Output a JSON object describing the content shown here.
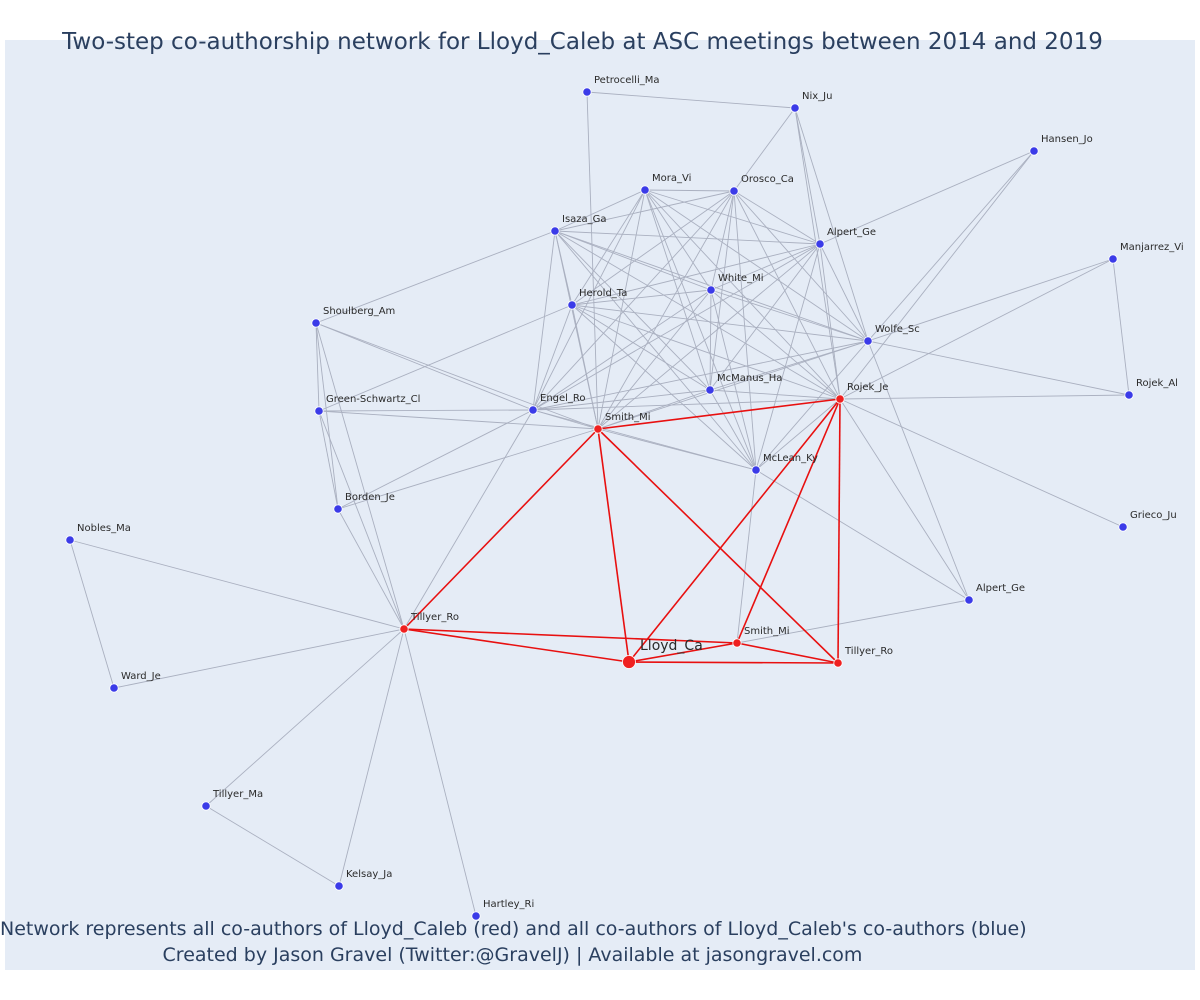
{
  "title": "Two-step co-authorship network for Lloyd_Caleb at ASC meetings between 2014 and 2019",
  "caption": {
    "line1": "Network represents all co-authors of Lloyd_Caleb (red) and all co-authors of Lloyd_Caleb's co-authors (blue)",
    "line2": "Created by Jason Gravel (Twitter:@GravelJ) | Available at jasongravel.com"
  },
  "colors": {
    "background": "#e5ecf6",
    "first_step_node": "#ef2020",
    "second_step_node": "#3b3be8",
    "first_step_edge": "#e81010",
    "second_step_edge": "#aab0c0",
    "text": "#2a3f5f"
  },
  "network": {
    "ego": "Lloyd_Ca",
    "nodes": [
      {
        "id": "lloyd",
        "label": "Lloyd_Ca",
        "group": "ego"
      },
      {
        "id": "smithA",
        "label": "Smith_Mi",
        "group": "first"
      },
      {
        "id": "rojekJe",
        "label": "Rojek_Je",
        "group": "first"
      },
      {
        "id": "tillyerA",
        "label": "Tillyer_Ro",
        "group": "first"
      },
      {
        "id": "smithB",
        "label": "Smith_Mi",
        "group": "first"
      },
      {
        "id": "tillyerB",
        "label": "Tillyer_Ro",
        "group": "first"
      },
      {
        "id": "petro",
        "label": "Petrocelli_Ma",
        "group": "second"
      },
      {
        "id": "nix",
        "label": "Nix_Ju",
        "group": "second"
      },
      {
        "id": "hansen",
        "label": "Hansen_Jo",
        "group": "second"
      },
      {
        "id": "mora",
        "label": "Mora_Vi",
        "group": "second"
      },
      {
        "id": "orosco",
        "label": "Orosco_Ca",
        "group": "second"
      },
      {
        "id": "isaza",
        "label": "Isaza_Ga",
        "group": "second"
      },
      {
        "id": "alpertA",
        "label": "Alpert_Ge",
        "group": "second"
      },
      {
        "id": "manjarrez",
        "label": "Manjarrez_Vi",
        "group": "second"
      },
      {
        "id": "white",
        "label": "White_Mi",
        "group": "second"
      },
      {
        "id": "herold",
        "label": "Herold_Ta",
        "group": "second"
      },
      {
        "id": "shoulberg",
        "label": "Shoulberg_Am",
        "group": "second"
      },
      {
        "id": "wolfe",
        "label": "Wolfe_Sc",
        "group": "second"
      },
      {
        "id": "mcmanus",
        "label": "McManus_Ha",
        "group": "second"
      },
      {
        "id": "greenschwartz",
        "label": "Green-Schwartz_Cl",
        "group": "second"
      },
      {
        "id": "engel",
        "label": "Engel_Ro",
        "group": "second"
      },
      {
        "id": "rojekAl",
        "label": "Rojek_Al",
        "group": "second"
      },
      {
        "id": "mclean",
        "label": "McLean_Ky",
        "group": "second"
      },
      {
        "id": "borden",
        "label": "Borden_Je",
        "group": "second"
      },
      {
        "id": "grieco",
        "label": "Grieco_Ju",
        "group": "second"
      },
      {
        "id": "nobles",
        "label": "Nobles_Ma",
        "group": "second"
      },
      {
        "id": "alpertB",
        "label": "Alpert_Ge",
        "group": "second"
      },
      {
        "id": "ward",
        "label": "Ward_Je",
        "group": "second"
      },
      {
        "id": "tillyerMa",
        "label": "Tillyer_Ma",
        "group": "second"
      },
      {
        "id": "kelsay",
        "label": "Kelsay_Ja",
        "group": "second"
      },
      {
        "id": "hartley",
        "label": "Hartley_Ri",
        "group": "second"
      }
    ],
    "edges": [
      [
        "lloyd",
        "smithA"
      ],
      [
        "lloyd",
        "rojekJe"
      ],
      [
        "lloyd",
        "tillyerA"
      ],
      [
        "lloyd",
        "smithB"
      ],
      [
        "lloyd",
        "tillyerB"
      ],
      [
        "smithA",
        "rojekJe"
      ],
      [
        "smithA",
        "tillyerA"
      ],
      [
        "smithA",
        "tillyerB"
      ],
      [
        "rojekJe",
        "smithB"
      ],
      [
        "rojekJe",
        "tillyerB"
      ],
      [
        "tillyerA",
        "smithB"
      ],
      [
        "smithB",
        "tillyerB"
      ],
      [
        "petro",
        "nix"
      ],
      [
        "petro",
        "smithA"
      ],
      [
        "nix",
        "alpertA"
      ],
      [
        "nix",
        "wolfe"
      ],
      [
        "nix",
        "orosco"
      ],
      [
        "nix",
        "rojekJe"
      ],
      [
        "hansen",
        "wolfe"
      ],
      [
        "hansen",
        "rojekJe"
      ],
      [
        "hansen",
        "alpertA"
      ],
      [
        "manjarrez",
        "wolfe"
      ],
      [
        "manjarrez",
        "rojekAl"
      ],
      [
        "manjarrez",
        "rojekJe"
      ],
      [
        "wolfe",
        "rojekAl"
      ],
      [
        "rojekJe",
        "rojekAl"
      ],
      [
        "rojekJe",
        "grieco"
      ],
      [
        "wolfe",
        "alpertB"
      ],
      [
        "rojekJe",
        "alpertB"
      ],
      [
        "smithB",
        "alpertB"
      ],
      [
        "mora",
        "orosco"
      ],
      [
        "mora",
        "isaza"
      ],
      [
        "mora",
        "alpertA"
      ],
      [
        "mora",
        "white"
      ],
      [
        "mora",
        "herold"
      ],
      [
        "mora",
        "engel"
      ],
      [
        "mora",
        "smithA"
      ],
      [
        "mora",
        "mcmanus"
      ],
      [
        "mora",
        "wolfe"
      ],
      [
        "mora",
        "rojekJe"
      ],
      [
        "mora",
        "mclean"
      ],
      [
        "orosco",
        "isaza"
      ],
      [
        "orosco",
        "alpertA"
      ],
      [
        "orosco",
        "white"
      ],
      [
        "orosco",
        "herold"
      ],
      [
        "orosco",
        "engel"
      ],
      [
        "orosco",
        "smithA"
      ],
      [
        "orosco",
        "mcmanus"
      ],
      [
        "orosco",
        "wolfe"
      ],
      [
        "orosco",
        "rojekJe"
      ],
      [
        "orosco",
        "mclean"
      ],
      [
        "isaza",
        "alpertA"
      ],
      [
        "isaza",
        "white"
      ],
      [
        "isaza",
        "herold"
      ],
      [
        "isaza",
        "engel"
      ],
      [
        "isaza",
        "smithA"
      ],
      [
        "isaza",
        "mcmanus"
      ],
      [
        "isaza",
        "wolfe"
      ],
      [
        "isaza",
        "rojekJe"
      ],
      [
        "isaza",
        "mclean"
      ],
      [
        "isaza",
        "shoulberg"
      ],
      [
        "alpertA",
        "white"
      ],
      [
        "alpertA",
        "herold"
      ],
      [
        "alpertA",
        "engel"
      ],
      [
        "alpertA",
        "smithA"
      ],
      [
        "alpertA",
        "mcmanus"
      ],
      [
        "alpertA",
        "wolfe"
      ],
      [
        "alpertA",
        "rojekJe"
      ],
      [
        "alpertA",
        "mclean"
      ],
      [
        "white",
        "herold"
      ],
      [
        "white",
        "engel"
      ],
      [
        "white",
        "smithA"
      ],
      [
        "white",
        "mcmanus"
      ],
      [
        "white",
        "wolfe"
      ],
      [
        "white",
        "rojekJe"
      ],
      [
        "white",
        "mclean"
      ],
      [
        "herold",
        "engel"
      ],
      [
        "herold",
        "smithA"
      ],
      [
        "herold",
        "mcmanus"
      ],
      [
        "herold",
        "wolfe"
      ],
      [
        "herold",
        "rojekJe"
      ],
      [
        "herold",
        "mclean"
      ],
      [
        "herold",
        "greenschwartz"
      ],
      [
        "mcmanus",
        "engel"
      ],
      [
        "mcmanus",
        "smithA"
      ],
      [
        "mcmanus",
        "wolfe"
      ],
      [
        "mcmanus",
        "rojekJe"
      ],
      [
        "mcmanus",
        "mclean"
      ],
      [
        "engel",
        "smithA"
      ],
      [
        "engel",
        "wolfe"
      ],
      [
        "engel",
        "rojekJe"
      ],
      [
        "engel",
        "mclean"
      ],
      [
        "engel",
        "borden"
      ],
      [
        "engel",
        "tillyerA"
      ],
      [
        "engel",
        "greenschwartz"
      ],
      [
        "smithA",
        "wolfe"
      ],
      [
        "smithA",
        "mclean"
      ],
      [
        "wolfe",
        "mclean"
      ],
      [
        "rojekJe",
        "mclean"
      ],
      [
        "mclean",
        "smithB"
      ],
      [
        "mclean",
        "alpertB"
      ],
      [
        "shoulberg",
        "greenschwartz"
      ],
      [
        "shoulberg",
        "borden"
      ],
      [
        "shoulberg",
        "tillyerA"
      ],
      [
        "shoulberg",
        "smithA"
      ],
      [
        "shoulberg",
        "engel"
      ],
      [
        "greenschwartz",
        "borden"
      ],
      [
        "greenschwartz",
        "tillyerA"
      ],
      [
        "greenschwartz",
        "smithA"
      ],
      [
        "borden",
        "tillyerA"
      ],
      [
        "borden",
        "smithA"
      ],
      [
        "nobles",
        "ward"
      ],
      [
        "nobles",
        "tillyerA"
      ],
      [
        "ward",
        "tillyerA"
      ],
      [
        "tillyerMa",
        "kelsay"
      ],
      [
        "tillyerMa",
        "tillyerA"
      ],
      [
        "kelsay",
        "tillyerA"
      ],
      [
        "hartley",
        "tillyerA"
      ]
    ]
  }
}
